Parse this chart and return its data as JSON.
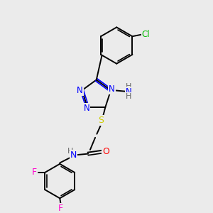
{
  "background_color": "#ebebeb",
  "bond_color": "#000000",
  "N_color": "#0000ff",
  "O_color": "#ff0000",
  "S_color": "#cccc00",
  "F_color": "#ff00cc",
  "Cl_color": "#00bb00",
  "H_color": "#666666",
  "figsize": [
    3.0,
    3.0
  ],
  "dpi": 100,
  "xlim": [
    0,
    10
  ],
  "ylim": [
    0,
    10
  ]
}
